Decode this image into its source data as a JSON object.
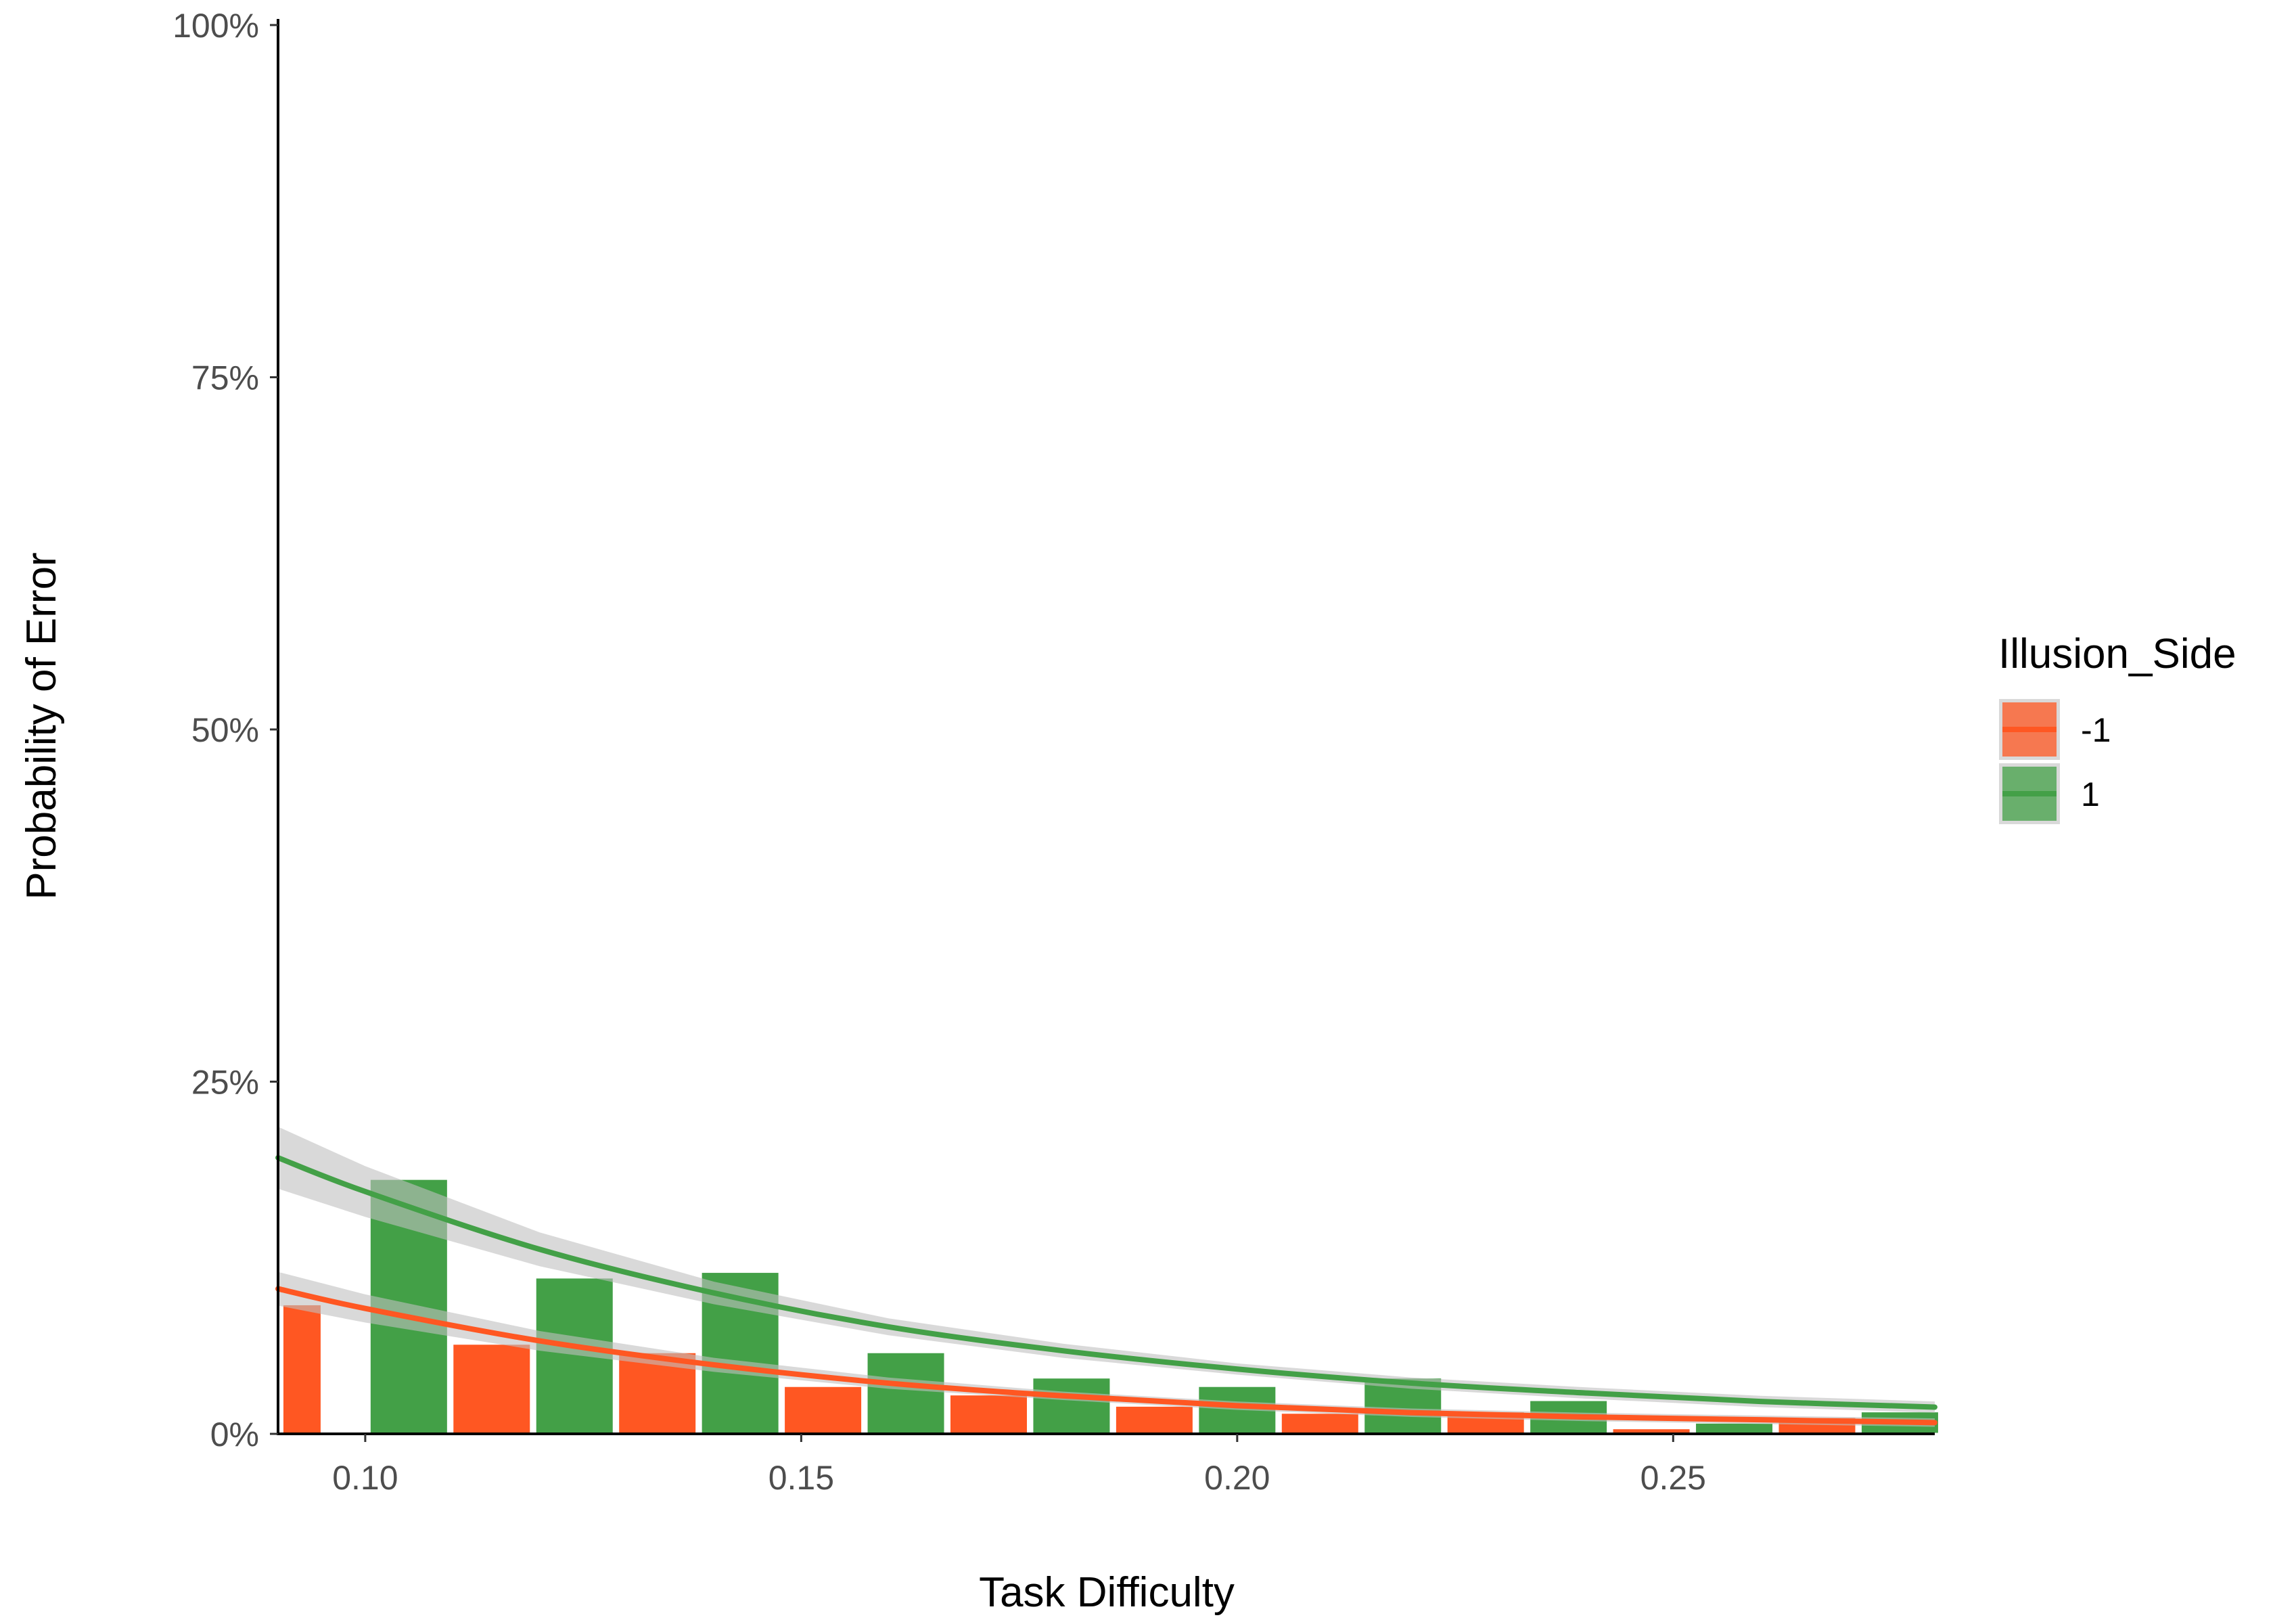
{
  "chart_data": {
    "type": "bar",
    "xlabel": "Task Difficulty",
    "ylabel": "Probability of Error",
    "xlim": [
      0.09,
      0.28
    ],
    "ylim": [
      0,
      1
    ],
    "x_ticks": [
      0.1,
      0.15,
      0.2,
      0.25
    ],
    "x_tick_labels": [
      "0.10",
      "0.15",
      "0.20",
      "0.25"
    ],
    "y_ticks": [
      0,
      0.25,
      0.5,
      0.75,
      1
    ],
    "y_tick_labels": [
      "0%",
      "25%",
      "50%",
      "75%",
      "100%"
    ],
    "grid": false,
    "legend": {
      "title": "Illusion_Side",
      "position": "right"
    },
    "series": [
      {
        "name": "-1",
        "color": "#FF5722",
        "bars": [
          {
            "x": 0.0905,
            "width": 0.0045,
            "value": 0.092
          },
          {
            "x": 0.11,
            "width": 0.009,
            "value": 0.064
          },
          {
            "x": 0.129,
            "width": 0.009,
            "value": 0.058
          },
          {
            "x": 0.148,
            "width": 0.009,
            "value": 0.034
          },
          {
            "x": 0.167,
            "width": 0.009,
            "value": 0.028
          },
          {
            "x": 0.186,
            "width": 0.009,
            "value": 0.02
          },
          {
            "x": 0.205,
            "width": 0.009,
            "value": 0.015
          },
          {
            "x": 0.224,
            "width": 0.009,
            "value": 0.016
          },
          {
            "x": 0.243,
            "width": 0.009,
            "value": 0.004
          },
          {
            "x": 0.262,
            "width": 0.009,
            "value": 0.012
          }
        ],
        "fit": [
          {
            "x": 0.09,
            "y": 0.103
          },
          {
            "x": 0.1,
            "y": 0.089
          },
          {
            "x": 0.12,
            "y": 0.066
          },
          {
            "x": 0.14,
            "y": 0.049
          },
          {
            "x": 0.16,
            "y": 0.036
          },
          {
            "x": 0.18,
            "y": 0.027
          },
          {
            "x": 0.2,
            "y": 0.02
          },
          {
            "x": 0.22,
            "y": 0.015
          },
          {
            "x": 0.24,
            "y": 0.012
          },
          {
            "x": 0.26,
            "y": 0.01
          },
          {
            "x": 0.28,
            "y": 0.008
          }
        ],
        "fit_ci_width": [
          0.012,
          0.01,
          0.007,
          0.005,
          0.004,
          0.003,
          0.003,
          0.003,
          0.003,
          0.003,
          0.003
        ]
      },
      {
        "name": "1",
        "color": "#43A047",
        "bars": [
          {
            "x": 0.1005,
            "width": 0.009,
            "value": 0.181
          },
          {
            "x": 0.1195,
            "width": 0.009,
            "value": 0.111
          },
          {
            "x": 0.1385,
            "width": 0.009,
            "value": 0.115
          },
          {
            "x": 0.1575,
            "width": 0.009,
            "value": 0.058
          },
          {
            "x": 0.1765,
            "width": 0.009,
            "value": 0.04
          },
          {
            "x": 0.1955,
            "width": 0.009,
            "value": 0.034
          },
          {
            "x": 0.2145,
            "width": 0.009,
            "value": 0.04
          },
          {
            "x": 0.2335,
            "width": 0.009,
            "value": 0.024
          },
          {
            "x": 0.2525,
            "width": 0.009,
            "value": 0.008
          },
          {
            "x": 0.2715,
            "width": 0.009,
            "value": 0.016
          }
        ],
        "fit": [
          {
            "x": 0.09,
            "y": 0.196
          },
          {
            "x": 0.1,
            "y": 0.172
          },
          {
            "x": 0.12,
            "y": 0.131
          },
          {
            "x": 0.14,
            "y": 0.1
          },
          {
            "x": 0.16,
            "y": 0.076
          },
          {
            "x": 0.18,
            "y": 0.059
          },
          {
            "x": 0.2,
            "y": 0.046
          },
          {
            "x": 0.22,
            "y": 0.036
          },
          {
            "x": 0.24,
            "y": 0.029
          },
          {
            "x": 0.26,
            "y": 0.023
          },
          {
            "x": 0.28,
            "y": 0.019
          }
        ],
        "fit_ci_width": [
          0.022,
          0.018,
          0.012,
          0.008,
          0.006,
          0.005,
          0.004,
          0.004,
          0.004,
          0.004,
          0.004
        ]
      }
    ]
  },
  "colors": {
    "ci_band": "#BFBFBF",
    "axis": "#000000",
    "bar_outline": "#FFFFFF",
    "legend_key_bg": "#D9D9D9"
  }
}
